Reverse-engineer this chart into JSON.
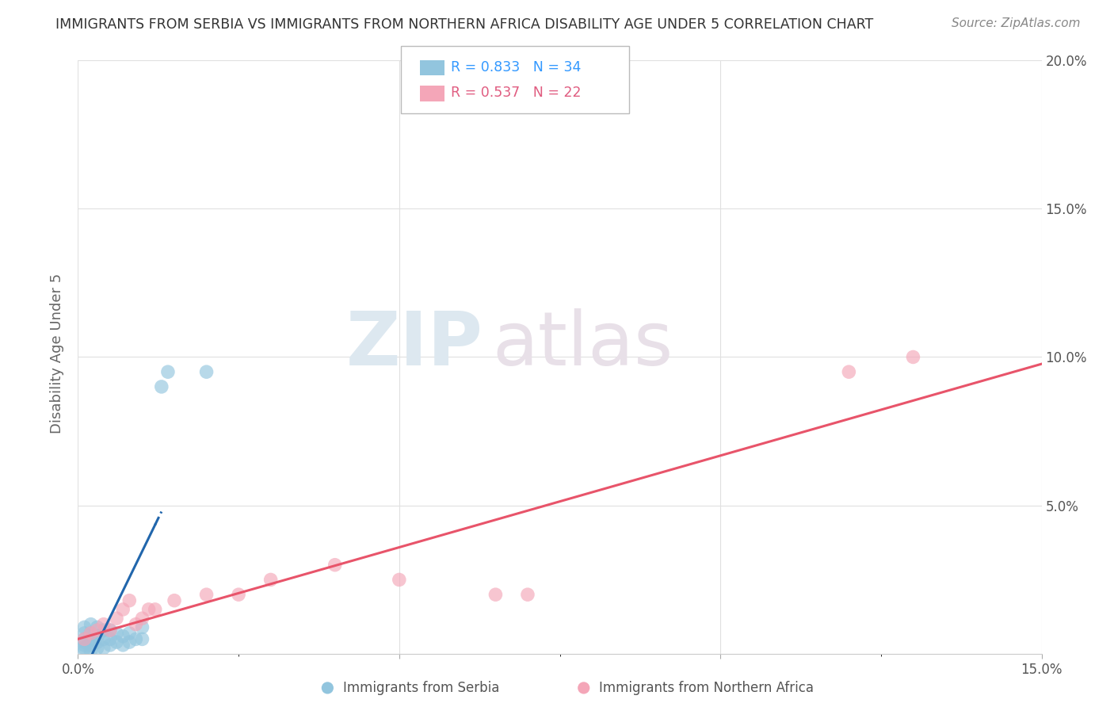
{
  "title": "IMMIGRANTS FROM SERBIA VS IMMIGRANTS FROM NORTHERN AFRICA DISABILITY AGE UNDER 5 CORRELATION CHART",
  "source": "Source: ZipAtlas.com",
  "ylabel": "Disability Age Under 5",
  "xlim": [
    0.0,
    0.15
  ],
  "ylim": [
    0.0,
    0.2
  ],
  "serbia_color": "#92c5de",
  "northern_africa_color": "#f4a6b8",
  "serbia_R": 0.833,
  "serbia_N": 34,
  "northern_africa_R": 0.537,
  "northern_africa_N": 22,
  "serbia_line_color": "#2166ac",
  "northern_africa_line_color": "#e8546a",
  "legend_label_serbia": "Immigrants from Serbia",
  "legend_label_na": "Immigrants from Northern Africa",
  "watermark_zip": "ZIP",
  "watermark_atlas": "atlas",
  "serbia_x": [
    0.001,
    0.001,
    0.001,
    0.001,
    0.001,
    0.001,
    0.001,
    0.002,
    0.002,
    0.002,
    0.002,
    0.002,
    0.003,
    0.003,
    0.003,
    0.003,
    0.004,
    0.004,
    0.004,
    0.005,
    0.005,
    0.005,
    0.006,
    0.006,
    0.007,
    0.007,
    0.008,
    0.008,
    0.009,
    0.01,
    0.01,
    0.013,
    0.014,
    0.02
  ],
  "serbia_y": [
    0.001,
    0.002,
    0.003,
    0.004,
    0.005,
    0.007,
    0.009,
    0.001,
    0.003,
    0.005,
    0.007,
    0.01,
    0.002,
    0.004,
    0.006,
    0.009,
    0.002,
    0.005,
    0.008,
    0.003,
    0.005,
    0.008,
    0.004,
    0.007,
    0.003,
    0.006,
    0.004,
    0.007,
    0.005,
    0.005,
    0.009,
    0.09,
    0.095,
    0.095
  ],
  "na_x": [
    0.001,
    0.002,
    0.003,
    0.004,
    0.005,
    0.006,
    0.007,
    0.008,
    0.009,
    0.01,
    0.011,
    0.012,
    0.015,
    0.02,
    0.025,
    0.03,
    0.04,
    0.05,
    0.065,
    0.07,
    0.12,
    0.13
  ],
  "na_y": [
    0.005,
    0.007,
    0.008,
    0.01,
    0.008,
    0.012,
    0.015,
    0.018,
    0.01,
    0.012,
    0.015,
    0.015,
    0.018,
    0.02,
    0.02,
    0.025,
    0.03,
    0.025,
    0.02,
    0.02,
    0.095,
    0.1
  ],
  "grid_color": "#e0e0e0",
  "background_color": "#ffffff"
}
